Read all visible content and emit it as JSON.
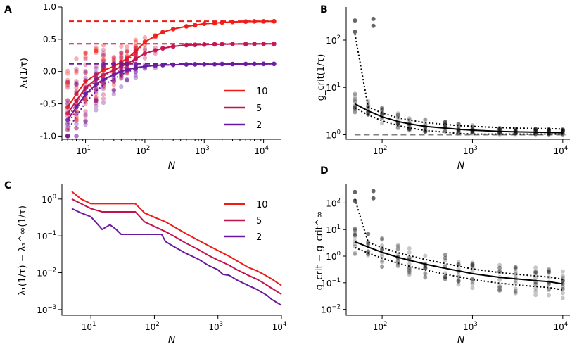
{
  "colors": {
    "n10": "#ef1b14",
    "n5": "#c2144c",
    "n2": "#6a1aa0",
    "points": "#000000",
    "reference": "#808080"
  },
  "chart_data": [
    {
      "panel": "A",
      "type": "scatter",
      "xlabel": "N",
      "ylabel": "λ₁(1/τ)",
      "xscale": "log",
      "xlim": [
        4,
        20000
      ],
      "ylim": [
        -1.05,
        1.0
      ],
      "yticks": [
        "-1.0",
        "-0.5",
        "0.0",
        "0.5",
        "1.0"
      ],
      "xticks": [
        "10¹",
        "10²",
        "10³",
        "10⁴"
      ],
      "legend": {
        "position": "lower-right",
        "entries": [
          "10",
          "5",
          "2"
        ]
      },
      "asymptotes": {
        "10": 0.78,
        "5": 0.43,
        "2": 0.12
      },
      "series": [
        {
          "name": "10",
          "x": [
            5,
            7,
            10,
            15,
            20,
            30,
            40,
            50,
            70,
            100,
            150,
            200,
            300,
            500,
            700,
            1000,
            1500,
            2000,
            3000,
            5000,
            7000,
            10000,
            15000
          ],
          "values": [
            -0.55,
            -0.35,
            -0.15,
            -0.05,
            0.02,
            0.08,
            0.15,
            0.2,
            0.32,
            0.46,
            0.55,
            0.61,
            0.66,
            0.7,
            0.72,
            0.74,
            0.75,
            0.76,
            0.77,
            0.775,
            0.777,
            0.778,
            0.78
          ]
        },
        {
          "name": "5",
          "x": [
            5,
            7,
            10,
            15,
            20,
            30,
            40,
            50,
            70,
            100,
            150,
            200,
            300,
            500,
            700,
            1000,
            1500,
            2000,
            3000,
            5000,
            7000,
            10000,
            15000
          ],
          "values": [
            -0.65,
            -0.45,
            -0.25,
            -0.12,
            -0.05,
            0.02,
            0.08,
            0.12,
            0.2,
            0.28,
            0.33,
            0.36,
            0.39,
            0.41,
            0.415,
            0.42,
            0.423,
            0.425,
            0.427,
            0.428,
            0.429,
            0.43,
            0.43
          ]
        },
        {
          "name": "2",
          "x": [
            5,
            7,
            10,
            15,
            20,
            30,
            40,
            50,
            70,
            100,
            150,
            200,
            300,
            500,
            700,
            1000,
            1500,
            2000,
            3000,
            5000,
            7000,
            10000,
            15000
          ],
          "values": [
            -0.75,
            -0.55,
            -0.35,
            -0.2,
            -0.12,
            -0.05,
            0.0,
            0.03,
            0.06,
            0.08,
            0.095,
            0.1,
            0.105,
            0.11,
            0.112,
            0.114,
            0.115,
            0.116,
            0.117,
            0.118,
            0.119,
            0.12,
            0.12
          ]
        }
      ]
    },
    {
      "panel": "B",
      "type": "scatter",
      "xlabel": "N",
      "ylabel": "g_crit(1/τ)",
      "xscale": "log",
      "yscale": "log",
      "xlim": [
        40,
        12000
      ],
      "ylim": [
        0.8,
        500
      ],
      "xticks": [
        "10²",
        "10³",
        "10⁴"
      ],
      "yticks": [
        "10⁰",
        "10¹",
        "10²"
      ],
      "reference_line": 1.0,
      "fit": {
        "x": [
          50,
          70,
          100,
          150,
          200,
          300,
          500,
          700,
          1000,
          2000,
          3000,
          5000,
          7000,
          10000
        ],
        "values": [
          4.5,
          3.2,
          2.4,
          1.9,
          1.7,
          1.5,
          1.38,
          1.3,
          1.25,
          1.18,
          1.15,
          1.13,
          1.12,
          1.1
        ]
      }
    },
    {
      "panel": "C",
      "type": "line",
      "xlabel": "N",
      "ylabel": "λ₁(1/τ) − λ₁^∞(1/τ)",
      "xscale": "log",
      "yscale": "log",
      "xlim": [
        3.5,
        10000
      ],
      "ylim": [
        0.0007,
        2.5
      ],
      "xticks": [
        "10¹",
        "10²",
        "10³",
        "10⁴"
      ],
      "yticks": [
        "10⁰",
        "10⁻¹",
        "10⁻²",
        "10⁻³"
      ],
      "legend": {
        "position": "top-right",
        "entries": [
          "10",
          "5",
          "2"
        ]
      },
      "series": [
        {
          "name": "10",
          "x": [
            5,
            7,
            10,
            15,
            20,
            30,
            40,
            50,
            60,
            70,
            100,
            150,
            200,
            300,
            500,
            700,
            1000,
            1500,
            2000,
            3000,
            4000,
            5000,
            7000,
            10000
          ],
          "values": [
            1.6,
            1.0,
            0.75,
            0.75,
            0.75,
            0.75,
            0.75,
            0.75,
            0.55,
            0.42,
            0.32,
            0.24,
            0.18,
            0.12,
            0.075,
            0.055,
            0.04,
            0.028,
            0.021,
            0.014,
            0.0115,
            0.0095,
            0.0068,
            0.0045
          ]
        },
        {
          "name": "5",
          "x": [
            5,
            7,
            10,
            15,
            20,
            30,
            40,
            50,
            60,
            70,
            100,
            150,
            200,
            300,
            500,
            700,
            1000,
            1500,
            2000,
            3000,
            4000,
            5000,
            7000,
            10000
          ],
          "values": [
            1.0,
            0.75,
            0.55,
            0.45,
            0.45,
            0.45,
            0.45,
            0.45,
            0.32,
            0.24,
            0.18,
            0.13,
            0.1,
            0.066,
            0.042,
            0.03,
            0.022,
            0.016,
            0.012,
            0.0085,
            0.0068,
            0.0055,
            0.0038,
            0.0026
          ]
        },
        {
          "name": "2",
          "x": [
            5,
            7,
            10,
            13,
            15,
            20,
            25,
            30,
            40,
            50,
            70,
            100,
            130,
            150,
            200,
            300,
            500,
            700,
            1000,
            1200,
            1500,
            2000,
            3000,
            4000,
            5000,
            6000,
            7000,
            10000
          ],
          "values": [
            0.55,
            0.42,
            0.33,
            0.2,
            0.15,
            0.2,
            0.15,
            0.11,
            0.11,
            0.11,
            0.11,
            0.11,
            0.11,
            0.07,
            0.052,
            0.035,
            0.023,
            0.016,
            0.012,
            0.009,
            0.0085,
            0.0063,
            0.0045,
            0.0036,
            0.0029,
            0.0024,
            0.0019,
            0.0013
          ]
        }
      ]
    },
    {
      "panel": "D",
      "type": "scatter",
      "xlabel": "N",
      "ylabel": "g_crit − g_crit^∞",
      "xscale": "log",
      "yscale": "log",
      "xlim": [
        40,
        12000
      ],
      "ylim": [
        0.006,
        500
      ],
      "xticks": [
        "10²",
        "10³",
        "10⁴"
      ],
      "yticks": [
        "10²",
        "10¹",
        "10⁰",
        "10⁻¹",
        "10⁻²"
      ],
      "fit": {
        "x": [
          50,
          70,
          100,
          150,
          200,
          300,
          500,
          700,
          1000,
          2000,
          3000,
          5000,
          7000,
          10000
        ],
        "values": [
          3.5,
          2.2,
          1.4,
          0.9,
          0.7,
          0.5,
          0.35,
          0.28,
          0.22,
          0.16,
          0.14,
          0.12,
          0.11,
          0.09
        ]
      }
    }
  ],
  "labels": {
    "panelA": "A",
    "panelB": "B",
    "panelC": "C",
    "panelD": "D",
    "xlabelA": "N",
    "xlabelB": "N",
    "xlabelC": "N",
    "xlabelD": "N",
    "ylabelA": "λ₁(1/τ)",
    "ylabelB": "g_crit(1/τ)",
    "ylabelC": "λ₁(1/τ) − λ₁^∞(1/τ)",
    "ylabelD": "g_crit − g_crit^∞",
    "yticksA": [
      "1.0",
      "0.5",
      "0.0",
      "-0.5",
      "-1.0"
    ],
    "legendA": [
      "10",
      "5",
      "2"
    ],
    "legendC": [
      "10",
      "5",
      "2"
    ]
  }
}
